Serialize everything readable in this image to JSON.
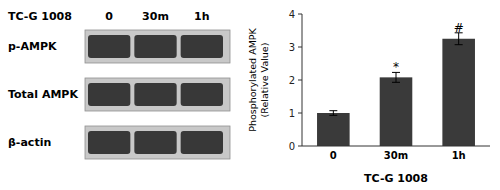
{
  "chart_data": [
    {
      "type": "blot",
      "title": "TC-G 1008",
      "categories": [
        "0",
        "30m",
        "1h"
      ],
      "rows": [
        "p-AMPK",
        "Total AMPK",
        "β-actin"
      ],
      "color": "#383838"
    },
    {
      "type": "bar",
      "categories": [
        "0",
        "30m",
        "1h"
      ],
      "values": [
        1.0,
        2.08,
        3.25
      ],
      "errors": [
        0.07,
        0.15,
        0.18
      ],
      "color": "#3a3a3a",
      "ylim": [
        0,
        4
      ],
      "yticks": [
        0,
        1,
        2,
        3,
        4
      ],
      "ylabel": [
        "Phosphorylated AMPK",
        "(Relative Value)"
      ],
      "xlabel": "TC-G 1008",
      "annotations": [
        {
          "text": "*",
          "x": 1,
          "y": 2.26
        },
        {
          "text": "#",
          "x": 2,
          "y": 3.46
        }
      ],
      "grid": false
    }
  ]
}
